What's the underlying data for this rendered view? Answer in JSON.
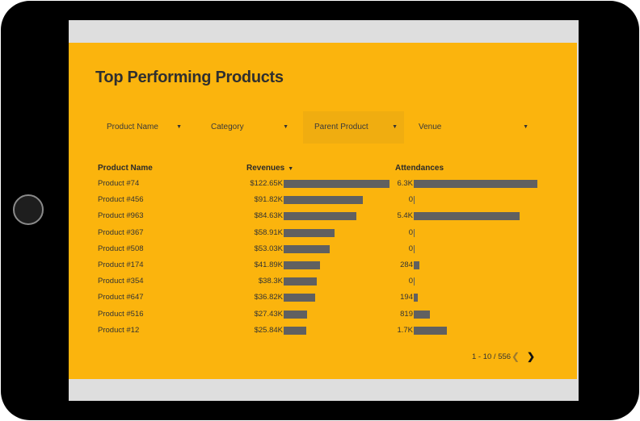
{
  "report": {
    "title": "Top Performing Products",
    "filters": [
      {
        "label": "Product Name"
      },
      {
        "label": "Category"
      },
      {
        "label": "Parent Product"
      },
      {
        "label": "Venue"
      }
    ],
    "columns": {
      "name": "Product Name",
      "revenues": "Revenues",
      "attendances": "Attendances"
    },
    "rows": [
      {
        "name": "Product #74",
        "revenue": "$122.65K",
        "revenue_value": 122.65,
        "attendance": "6.3K",
        "attendance_value": 6300
      },
      {
        "name": "Product #456",
        "revenue": "$91.82K",
        "revenue_value": 91.82,
        "attendance": "0",
        "attendance_value": 0
      },
      {
        "name": "Product #963",
        "revenue": "$84.63K",
        "revenue_value": 84.63,
        "attendance": "5.4K",
        "attendance_value": 5400
      },
      {
        "name": "Product #367",
        "revenue": "$58.91K",
        "revenue_value": 58.91,
        "attendance": "0",
        "attendance_value": 0
      },
      {
        "name": "Product #508",
        "revenue": "$53.03K",
        "revenue_value": 53.03,
        "attendance": "0",
        "attendance_value": 0
      },
      {
        "name": "Product #174",
        "revenue": "$41.89K",
        "revenue_value": 41.89,
        "attendance": "284",
        "attendance_value": 284
      },
      {
        "name": "Product #354",
        "revenue": "$38.3K",
        "revenue_value": 38.3,
        "attendance": "0",
        "attendance_value": 0
      },
      {
        "name": "Product #647",
        "revenue": "$36.82K",
        "revenue_value": 36.82,
        "attendance": "194",
        "attendance_value": 194
      },
      {
        "name": "Product #516",
        "revenue": "$27.43K",
        "revenue_value": 27.43,
        "attendance": "819",
        "attendance_value": 819
      },
      {
        "name": "Product #12",
        "revenue": "$25.84K",
        "revenue_value": 25.84,
        "attendance": "1.7K",
        "attendance_value": 1700
      }
    ],
    "pagination": {
      "text": "1 - 10 / 556",
      "prev_icon": "chevron-left-icon",
      "next_icon": "chevron-right-icon"
    }
  },
  "colors": {
    "background": "#fbb40d",
    "bar": "#606060",
    "frame": "#000000",
    "screen_border": "#dedede"
  }
}
